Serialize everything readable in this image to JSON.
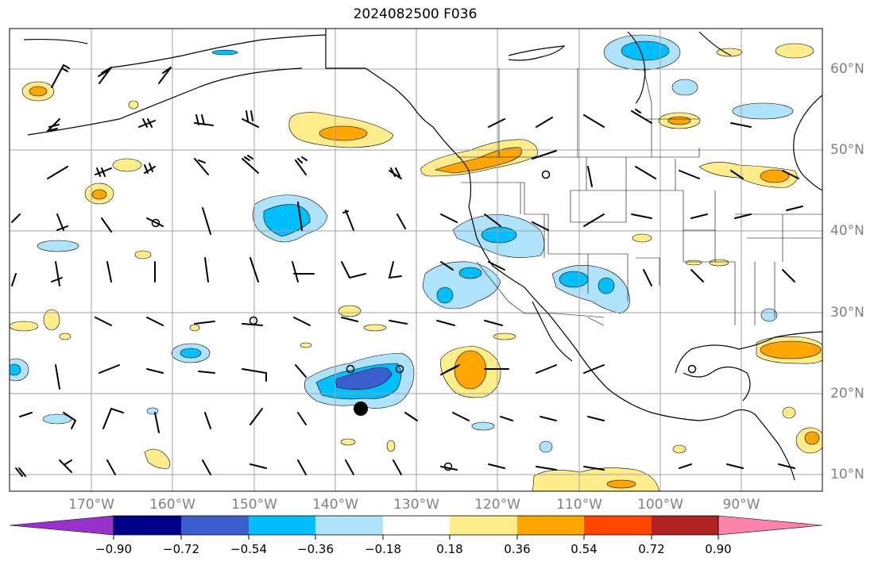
{
  "title": "2024082500 F036",
  "lat_labels": [
    "60°N",
    "50°N",
    "40°N",
    "30°N",
    "20°N",
    "10°N"
  ],
  "lon_labels": [
    "170°W",
    "160°W",
    "150°W",
    "140°W",
    "130°W",
    "120°W",
    "110°W",
    "100°W",
    "90°W"
  ],
  "colorbar": {
    "ticks": [
      "−0.90",
      "−0.72",
      "−0.54",
      "−0.36",
      "−0.18",
      "0.18",
      "0.36",
      "0.54",
      "0.72",
      "0.90"
    ],
    "colors": [
      "#9932cc",
      "#00008b",
      "#3a5fcd",
      "#00bfff",
      "#aee3fb",
      "#ffffff",
      "#ffec8b",
      "#ffa500",
      "#ff4500",
      "#b22222",
      "#ff82ab"
    ]
  }
}
